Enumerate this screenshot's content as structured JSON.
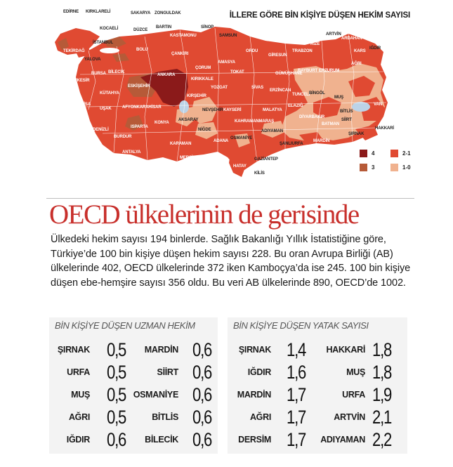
{
  "map": {
    "title": "İLLERE GÖRE BİN KİŞİYE DÜŞEN HEKİM SAYISI",
    "colors": {
      "c4": "#8b1a1a",
      "c3": "#b65a38",
      "c21": "#e04a32",
      "c10": "#f0b28f"
    },
    "legend": [
      {
        "label": "4",
        "color": "#8b1a1a"
      },
      {
        "label": "2-1",
        "color": "#e04a32"
      },
      {
        "label": "3",
        "color": "#b65a38"
      },
      {
        "label": "1-0",
        "color": "#f0b28f"
      }
    ],
    "cities": [
      "EDİRNE",
      "KIRKLARELİ",
      "SAKARYA",
      "ZONGULDAK",
      "KOCAELİ",
      "DÜZCE",
      "BARTIN",
      "SİNOP",
      "SAMSUN",
      "TEKİRDAĞ",
      "İSTANBUL",
      "KASTAMONU",
      "YALOVA",
      "BOLU",
      "ÇANKIRI",
      "ÇORUM",
      "AMASYA",
      "ORDU",
      "GİRESUN",
      "TRABZON",
      "RİZE",
      "ARTVİN",
      "ARDAHAN",
      "KARS",
      "IĞDIR",
      "ÇANAKKALE",
      "BURSA",
      "BİLECİK",
      "ANKARA",
      "KIRIKKALE",
      "TOKAT",
      "SİVAS",
      "GÜMÜŞHANE",
      "BAYBURT",
      "ERZURUM",
      "AĞRI",
      "BALIKESİR",
      "ESKİŞEHİR",
      "KÜTAHYA",
      "YOZGAT",
      "ERZİNCAN",
      "TUNCELİ",
      "BİNGÖL",
      "MUŞ",
      "VAN",
      "BİTLİS",
      "MANİSA",
      "UŞAK",
      "AFYONKARAHİSAR",
      "KIRŞEHİR",
      "NEVŞEHİR",
      "KAYSERİ",
      "MALATYA",
      "ELAZIĞ",
      "DİYARBAKIR",
      "BATMAN",
      "SİİRT",
      "İZMİR",
      "AYDIN",
      "DENİZLİ",
      "KONYA",
      "AKSARAY",
      "NİĞDE",
      "KAHRAMANMARAŞ",
      "ADIYAMAN",
      "ŞANLIURFA",
      "MARDİN",
      "ŞIRNAK",
      "HAKKARİ",
      "MUĞLA",
      "BURDUR",
      "ISPARTA",
      "ANTALYA",
      "KARAMAN",
      "MERSİN",
      "ADANA",
      "OSMANİYE",
      "HATAY",
      "GAZİANTEP",
      "KİLİS"
    ]
  },
  "headline": "OECD ülkelerinin de gerisinde",
  "body": "Ülkedeki hekim sayısı 194 binlerde. Sağlık Bakanlığı Yıllık İstatistiğine göre, Türkiye’de 100 bin kişiye düşen hekim sayısı 228. Bu oran Avrupa Birliği (AB) ülkelerinde 402, OECD ülkelerinde 372 iken Kamboçya’da ise 245. 100 bin kişiye düşen ebe-hemşire sayısı 356 oldu. Bu veri AB ülkelerinde 890, OECD’de 1002.",
  "specialist_table": {
    "title": "BİN KİŞİYE DÜŞEN UZMAN HEKİM",
    "left": [
      {
        "name": "ŞIRNAK",
        "value": "0,5"
      },
      {
        "name": "URFA",
        "value": "0,5"
      },
      {
        "name": "MUŞ",
        "value": "0,5"
      },
      {
        "name": "AĞRI",
        "value": "0,5"
      },
      {
        "name": "IĞDIR",
        "value": "0,6"
      }
    ],
    "right": [
      {
        "name": "MARDİN",
        "value": "0,6"
      },
      {
        "name": "SİİRT",
        "value": "0,6"
      },
      {
        "name": "OSMANİYE",
        "value": "0,6"
      },
      {
        "name": "BİTLİS",
        "value": "0,6"
      },
      {
        "name": "BİLECİK",
        "value": "0,6"
      }
    ]
  },
  "bed_table": {
    "title": "BİN KİŞİYE DÜŞEN YATAK SAYISI",
    "left": [
      {
        "name": "ŞIRNAK",
        "value": "1,4"
      },
      {
        "name": "IĞDIR",
        "value": "1,6"
      },
      {
        "name": "MARDİN",
        "value": "1,7"
      },
      {
        "name": "AĞRI",
        "value": "1,7"
      },
      {
        "name": "DERSİM",
        "value": "1,7"
      }
    ],
    "right": [
      {
        "name": "HAKKARİ",
        "value": "1,8"
      },
      {
        "name": "MUŞ",
        "value": "1,8"
      },
      {
        "name": "URFA",
        "value": "1,9"
      },
      {
        "name": "ARTVİN",
        "value": "2,1"
      },
      {
        "name": "ADIYAMAN",
        "value": "2,2"
      }
    ]
  }
}
